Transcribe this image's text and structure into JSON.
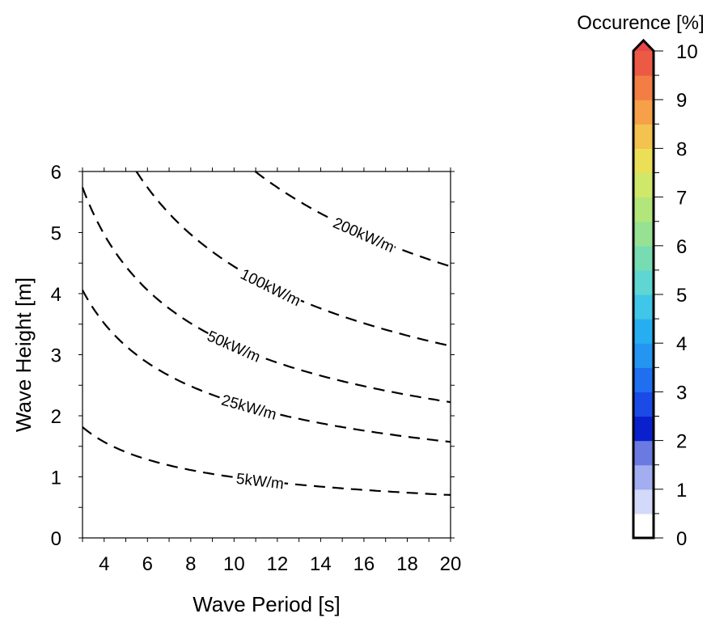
{
  "chart_data": {
    "type": "contour",
    "xlabel": "Wave Period [s]",
    "ylabel": "Wave Height [m]",
    "xlim": [
      3,
      20
    ],
    "ylim": [
      0,
      6
    ],
    "xticks": [
      4,
      6,
      8,
      10,
      12,
      14,
      16,
      18,
      20
    ],
    "yticks": [
      0,
      1,
      2,
      3,
      4,
      5,
      6
    ],
    "grid": false,
    "contour_lines": [
      {
        "label": "5kW/m",
        "power_kw_per_m": 5,
        "label_x": 11.2,
        "label_y": 1.0
      },
      {
        "label": "25kW/m",
        "power_kw_per_m": 25,
        "label_x": 10.7,
        "label_y": 2.15
      },
      {
        "label": "50kW/m",
        "power_kw_per_m": 50,
        "label_x": 10.0,
        "label_y": 3.1
      },
      {
        "label": "100kW/m",
        "power_kw_per_m": 100,
        "label_x": 11.7,
        "label_y": 4.1
      },
      {
        "label": "200kW/m",
        "power_kw_per_m": 200,
        "label_x": 16.0,
        "label_y": 5.2
      }
    ],
    "colorbar": {
      "title": "Occurence [%]",
      "min": 0,
      "max": 10,
      "ticks": [
        0,
        1,
        2,
        3,
        4,
        5,
        6,
        7,
        8,
        9,
        10
      ],
      "extend": "max",
      "levels": [
        {
          "from": 0.0,
          "to": 0.5,
          "color": "#ffffff"
        },
        {
          "from": 0.5,
          "to": 1.0,
          "color": "#d3d9f8"
        },
        {
          "from": 1.0,
          "to": 1.5,
          "color": "#a3aef0"
        },
        {
          "from": 1.5,
          "to": 2.0,
          "color": "#6a7ae0"
        },
        {
          "from": 2.0,
          "to": 2.5,
          "color": "#0a20cc"
        },
        {
          "from": 2.5,
          "to": 3.0,
          "color": "#1b4ae6"
        },
        {
          "from": 3.0,
          "to": 3.5,
          "color": "#1f6ff0"
        },
        {
          "from": 3.5,
          "to": 4.0,
          "color": "#2496f2"
        },
        {
          "from": 4.0,
          "to": 4.5,
          "color": "#26aef0"
        },
        {
          "from": 4.5,
          "to": 5.0,
          "color": "#3fc6e8"
        },
        {
          "from": 5.0,
          "to": 5.5,
          "color": "#5fd6d2"
        },
        {
          "from": 5.5,
          "to": 6.0,
          "color": "#78dcb2"
        },
        {
          "from": 6.0,
          "to": 6.5,
          "color": "#96e292"
        },
        {
          "from": 6.5,
          "to": 7.0,
          "color": "#b2e67a"
        },
        {
          "from": 7.0,
          "to": 7.5,
          "color": "#cfe86a"
        },
        {
          "from": 7.5,
          "to": 8.0,
          "color": "#ecdf58"
        },
        {
          "from": 8.0,
          "to": 8.5,
          "color": "#f4c24e"
        },
        {
          "from": 8.5,
          "to": 9.0,
          "color": "#f6a04a"
        },
        {
          "from": 9.0,
          "to": 9.5,
          "color": "#f27e46"
        },
        {
          "from": 9.5,
          "to": 10.0,
          "color": "#ec5a46"
        }
      ],
      "extend_color": "#e8474a"
    }
  }
}
